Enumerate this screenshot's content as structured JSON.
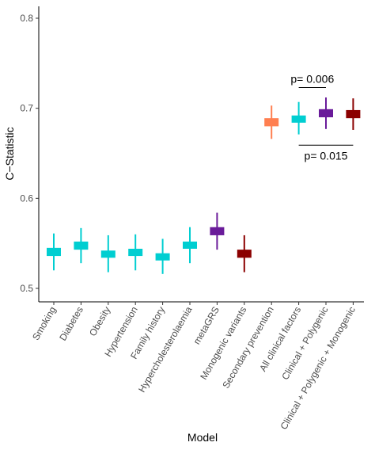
{
  "chart_data": {
    "type": "errorbar",
    "xlabel": "Model",
    "ylabel": "C−Statistic",
    "ylim": [
      0.5,
      0.8
    ],
    "yticks": [
      0.5,
      0.6,
      0.7,
      0.8
    ],
    "grid": false,
    "categories": [
      "Smoking",
      "Diabetes",
      "Obesity",
      "Hypertension",
      "Family history",
      "Hypercholesterolaemia",
      "metaGRS",
      "Monogenic variants",
      "Secondary prevention",
      "All clinical factors",
      "Clinical + Polygenic",
      "Clinical + Polygenic + Monogenic"
    ],
    "points": [
      {
        "category": "Smoking",
        "estimate": 0.54,
        "box_low": 0.536,
        "box_high": 0.545,
        "ci_low": 0.52,
        "ci_high": 0.561,
        "color": "#00CED1"
      },
      {
        "category": "Diabetes",
        "estimate": 0.547,
        "box_low": 0.543,
        "box_high": 0.552,
        "ci_low": 0.528,
        "ci_high": 0.567,
        "color": "#00CED1"
      },
      {
        "category": "Obesity",
        "estimate": 0.538,
        "box_low": 0.534,
        "box_high": 0.542,
        "ci_low": 0.518,
        "ci_high": 0.559,
        "color": "#00CED1"
      },
      {
        "category": "Hypertension",
        "estimate": 0.54,
        "box_low": 0.536,
        "box_high": 0.544,
        "ci_low": 0.52,
        "ci_high": 0.56,
        "color": "#00CED1"
      },
      {
        "category": "Family history",
        "estimate": 0.535,
        "box_low": 0.531,
        "box_high": 0.539,
        "ci_low": 0.516,
        "ci_high": 0.555,
        "color": "#00CED1"
      },
      {
        "category": "Hypercholesterolaemia",
        "estimate": 0.548,
        "box_low": 0.544,
        "box_high": 0.552,
        "ci_low": 0.528,
        "ci_high": 0.568,
        "color": "#00CED1"
      },
      {
        "category": "metaGRS",
        "estimate": 0.563,
        "box_low": 0.559,
        "box_high": 0.568,
        "ci_low": 0.543,
        "ci_high": 0.584,
        "color": "#6A1B9A"
      },
      {
        "category": "Monogenic variants",
        "estimate": 0.538,
        "box_low": 0.534,
        "box_high": 0.543,
        "ci_low": 0.518,
        "ci_high": 0.559,
        "color": "#8B0000"
      },
      {
        "category": "Secondary prevention",
        "estimate": 0.684,
        "box_low": 0.68,
        "box_high": 0.689,
        "ci_low": 0.666,
        "ci_high": 0.703,
        "color": "#FF7F50"
      },
      {
        "category": "All clinical factors",
        "estimate": 0.688,
        "box_low": 0.684,
        "box_high": 0.692,
        "ci_low": 0.671,
        "ci_high": 0.707,
        "color": "#00CED1"
      },
      {
        "category": "Clinical + Polygenic",
        "estimate": 0.694,
        "box_low": 0.69,
        "box_high": 0.699,
        "ci_low": 0.677,
        "ci_high": 0.712,
        "color": "#6A1B9A"
      },
      {
        "category": "Clinical + Polygenic + Monogenic",
        "estimate": 0.693,
        "box_low": 0.689,
        "box_high": 0.698,
        "ci_low": 0.676,
        "ci_high": 0.711,
        "color": "#8B0000"
      }
    ],
    "annotations": [
      {
        "text": "p= 0.006",
        "from": "All clinical factors",
        "to": "Clinical + Polygenic",
        "y": 0.723
      },
      {
        "text": "p= 0.015",
        "from": "All clinical factors",
        "to": "Clinical + Polygenic + Monogenic",
        "y": 0.659
      }
    ]
  }
}
